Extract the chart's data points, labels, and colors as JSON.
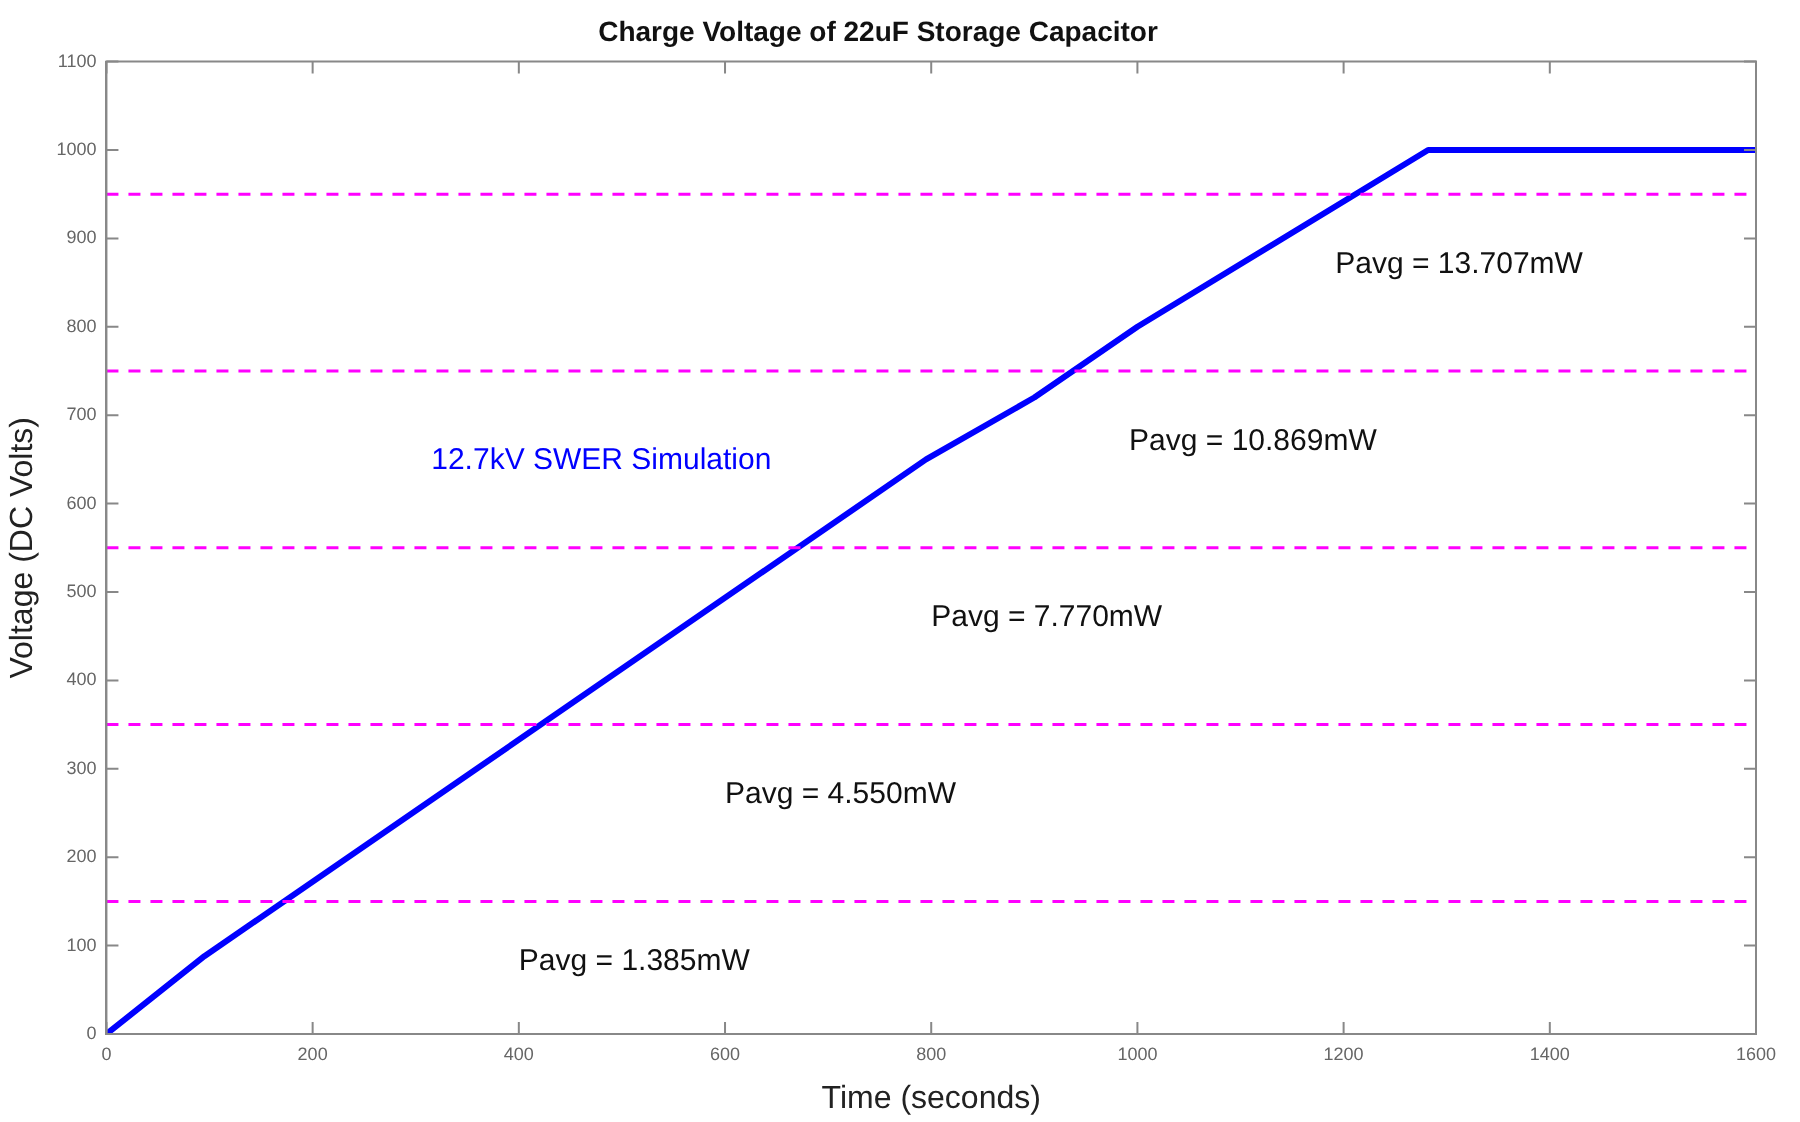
{
  "chart_data": {
    "type": "line",
    "title": "Charge Voltage of 22uF Storage Capacitor",
    "xlabel": "Time (seconds)",
    "ylabel": "Voltage (DC Volts)",
    "x": [
      0,
      95,
      795,
      900,
      1000,
      1282,
      1600
    ],
    "series": [
      {
        "name": "12.7kV SWER Simulation",
        "color": "#0000ff",
        "values": [
          0,
          88,
          650,
          720,
          800,
          1000,
          1000
        ]
      }
    ],
    "xlim": [
      0,
      1600
    ],
    "xticks": [
      0,
      200,
      400,
      600,
      800,
      1000,
      1200,
      1400,
      1600
    ],
    "ylim": [
      0,
      1100
    ],
    "yticks": [
      0,
      100,
      200,
      300,
      400,
      500,
      600,
      700,
      800,
      900,
      1000,
      1100
    ],
    "grid": false,
    "legend": false,
    "marker": "none",
    "line_style": "solid",
    "ref_lines": [
      {
        "axis": "y",
        "value": 150,
        "color": "#ff00ff",
        "line_style": "dashed"
      },
      {
        "axis": "y",
        "value": 350,
        "color": "#ff00ff",
        "line_style": "dashed"
      },
      {
        "axis": "y",
        "value": 550,
        "color": "#ff00ff",
        "line_style": "dashed"
      },
      {
        "axis": "y",
        "value": 750,
        "color": "#ff00ff",
        "line_style": "dashed"
      },
      {
        "axis": "y",
        "value": 950,
        "color": "#ff00ff",
        "line_style": "dashed"
      }
    ],
    "annotations": [
      "Pavg = 1.385mW",
      "Pavg = 4.550mW",
      "Pavg = 7.770mW",
      "Pavg = 10.869mW",
      "Pavg = 13.707mW"
    ]
  }
}
